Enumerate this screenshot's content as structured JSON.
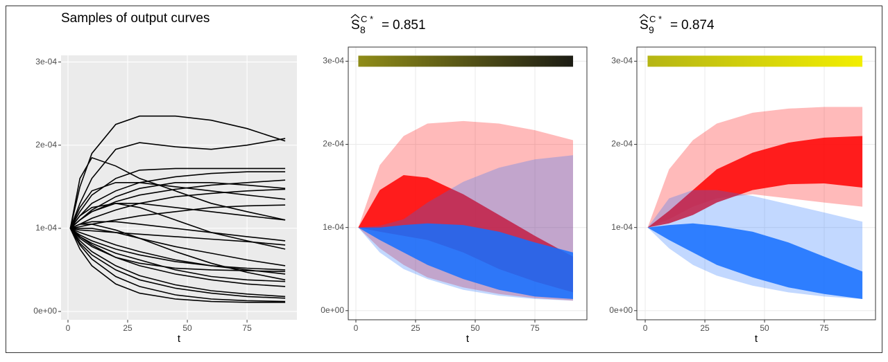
{
  "chart_data": [
    {
      "type": "line",
      "title": "Samples of output curves",
      "x_label": "t",
      "color": "#000000",
      "background": "#ebebeb",
      "grid_color": "#ffffff",
      "xlim": [
        -2.9,
        95.9
      ],
      "ylim": [
        -1e-05,
        0.000308
      ],
      "xticks": [
        0,
        25,
        50,
        75
      ],
      "yticks": [
        {
          "value": 0,
          "label": "0e+00"
        },
        {
          "value": 0.0001,
          "label": "1e-04"
        },
        {
          "value": 0.0002,
          "label": "2e-04"
        },
        {
          "value": 0.0003,
          "label": "3e-04"
        }
      ],
      "x": [
        1,
        5,
        10,
        20,
        30,
        45,
        60,
        75,
        91
      ],
      "series": [
        {
          "values": [
            0.0001,
            0.00015,
            0.00019,
            0.000225,
            0.000235,
            0.000235,
            0.00023,
            0.00022,
            0.000205
          ]
        },
        {
          "values": [
            0.0001,
            0.00016,
            0.000185,
            0.000175,
            0.00016,
            0.000145,
            0.00013,
            0.00012,
            0.00011
          ]
        },
        {
          "values": [
            0.0001,
            0.00013,
            0.00016,
            0.000195,
            0.000203,
            0.000198,
            0.000195,
            0.0002,
            0.000208
          ]
        },
        {
          "values": [
            0.0001,
            0.00012,
            0.00014,
            0.00016,
            0.00017,
            0.000172,
            0.000172,
            0.000172,
            0.000172
          ]
        },
        {
          "values": [
            0.0001,
            0.000115,
            0.00013,
            0.000145,
            0.000155,
            0.000162,
            0.000166,
            0.000168,
            0.000168
          ]
        },
        {
          "values": [
            0.0001,
            0.000125,
            0.000145,
            0.000155,
            0.000155,
            0.00015,
            0.000145,
            0.00014,
            0.000135
          ]
        },
        {
          "values": [
            0.0001,
            0.00011,
            0.00012,
            0.000132,
            0.00014,
            0.000147,
            0.000152,
            0.000155,
            0.000158
          ]
        },
        {
          "values": [
            0.0001,
            0.000105,
            0.000112,
            0.000122,
            0.00013,
            0.000138,
            0.000142,
            0.000145,
            0.000147
          ]
        },
        {
          "values": [
            0.0001,
            0.00011,
            0.00012,
            0.00013,
            0.00013,
            0.000125,
            0.00012,
            0.000115,
            0.00011
          ]
        },
        {
          "values": [
            0.0001,
            0.000102,
            0.000105,
            0.00011,
            0.000115,
            0.00012,
            0.000125,
            0.000127,
            0.000128
          ]
        },
        {
          "values": [
            0.0001,
            0.000115,
            0.000125,
            0.00013,
            0.000125,
            0.00011,
            9.5e-05,
            8.5e-05,
            7.5e-05
          ]
        },
        {
          "values": [
            0.0001,
            0.000105,
            0.000108,
            0.000108,
            0.000105,
            0.0001,
            9.5e-05,
            9e-05,
            8.5e-05
          ]
        },
        {
          "values": [
            0.0001,
            9.8e-05,
            9.7e-05,
            9.5e-05,
            9.3e-05,
            9e-05,
            8.7e-05,
            8.4e-05,
            8e-05
          ]
        },
        {
          "values": [
            0.0001,
            0.0001,
            0.0001,
            9.5e-05,
            8.8e-05,
            7.8e-05,
            7e-05,
            6.2e-05,
            5.5e-05
          ]
        },
        {
          "values": [
            0.0001,
            9.5e-05,
            9e-05,
            8e-05,
            7.2e-05,
            6.2e-05,
            5.5e-05,
            5e-05,
            4.5e-05
          ]
        },
        {
          "values": [
            0.0001,
            9e-05,
            8e-05,
            6.5e-05,
            5.5e-05,
            4.5e-05,
            3.8e-05,
            3.3e-05,
            3e-05
          ]
        },
        {
          "values": [
            0.0001,
            8.5e-05,
            7.2e-05,
            5.5e-05,
            4.3e-05,
            3.2e-05,
            2.5e-05,
            2.1e-05,
            1.8e-05
          ]
        },
        {
          "values": [
            0.0001,
            8e-05,
            6.3e-05,
            4.2e-05,
            3e-05,
            2e-05,
            1.5e-05,
            1.3e-05,
            1.2e-05
          ]
        },
        {
          "values": [
            0.0001,
            7.5e-05,
            5.5e-05,
            3.3e-05,
            2.2e-05,
            1.5e-05,
            1.2e-05,
            1.1e-05,
            1.1e-05
          ]
        },
        {
          "values": [
            0.0001,
            8.8e-05,
            7.8e-05,
            6.5e-05,
            5.8e-05,
            5.2e-05,
            5e-05,
            4.9e-05,
            4.8e-05
          ]
        },
        {
          "values": [
            0.0001,
            9.2e-05,
            8.5e-05,
            7.5e-05,
            6.8e-05,
            6e-05,
            5.5e-05,
            5.2e-05,
            5e-05
          ]
        },
        {
          "values": [
            0.0001,
            0.000105,
            0.000105,
            9.8e-05,
            8.8e-05,
            7.2e-05,
            5.8e-05,
            4.7e-05,
            3.8e-05
          ]
        },
        {
          "values": [
            0.0001,
            8.2e-05,
            6.8e-05,
            5e-05,
            3.8e-05,
            2.8e-05,
            2.2e-05,
            1.8e-05,
            1.6e-05
          ]
        },
        {
          "values": [
            0.0001,
            9e-05,
            8.2e-05,
            7e-05,
            6.2e-05,
            5e-05,
            4.2e-05,
            3.8e-05,
            3.6e-05
          ]
        },
        {
          "values": [
            0.0001,
            0.00011,
            0.000122,
            0.000138,
            0.000148,
            0.000155,
            0.000155,
            0.000152,
            0.000148
          ]
        }
      ]
    },
    {
      "type": "area",
      "title": {
        "symbol": "S",
        "subscript": "8",
        "superscript": "C *",
        "relation": "=",
        "value": 0.851
      },
      "x_label": "t",
      "background": "#ffffff",
      "grid_color": "#ebebeb",
      "colorbar": [
        "#8f8c18",
        "#1c1c14"
      ],
      "xlim": [
        -3.2,
        96.8
      ],
      "ylim": [
        -1.1e-05,
        0.000317
      ],
      "xticks": [
        0,
        25,
        50,
        75
      ],
      "yticks": [
        {
          "value": 0,
          "label": "0e+00"
        },
        {
          "value": 0.0001,
          "label": "1e-04"
        },
        {
          "value": 0.0002,
          "label": "2e-04"
        },
        {
          "value": 0.0003,
          "label": "3e-04"
        }
      ],
      "x": [
        1,
        10,
        20,
        30,
        45,
        60,
        75,
        91
      ],
      "series": [
        {
          "color": "rgba(255,0,0,0.27)",
          "lower": [
            0.0001,
            7.5e-05,
            5.5e-05,
            4e-05,
            2.8e-05,
            2e-05,
            1.5e-05,
            1.2e-05
          ],
          "upper": [
            0.0001,
            0.000175,
            0.00021,
            0.000225,
            0.000228,
            0.000225,
            0.000217,
            0.000205
          ]
        },
        {
          "color": "rgba(255,0,0,0.85)",
          "lower": [
            0.0001,
            9.5e-05,
            9e-05,
            8.5e-05,
            7e-05,
            5e-05,
            3.5e-05,
            2.2e-05
          ],
          "upper": [
            0.0001,
            0.000145,
            0.000163,
            0.00016,
            0.00014,
            0.000115,
            9e-05,
            6.5e-05
          ]
        },
        {
          "color": "rgba(30,110,255,0.27)",
          "lower": [
            0.0001,
            7e-05,
            5e-05,
            3.8e-05,
            2.5e-05,
            1.8e-05,
            1.4e-05,
            1.2e-05
          ],
          "upper": [
            0.0001,
            0.000102,
            0.00011,
            0.00013,
            0.000155,
            0.000172,
            0.000182,
            0.000187
          ]
        },
        {
          "color": "rgba(20,110,255,0.85)",
          "lower": [
            0.0001,
            8.5e-05,
            7e-05,
            5.5e-05,
            3.8e-05,
            2.5e-05,
            1.7e-05,
            1.4e-05
          ],
          "upper": [
            0.0001,
            0.0001,
            0.000103,
            0.000105,
            0.000103,
            9.5e-05,
            8.2e-05,
            7e-05
          ]
        }
      ]
    },
    {
      "type": "area",
      "title": {
        "symbol": "S",
        "subscript": "9",
        "superscript": "C *",
        "relation": "=",
        "value": 0.874
      },
      "x_label": "t",
      "background": "#ffffff",
      "grid_color": "#ebebeb",
      "colorbar": [
        "#b5b514",
        "#f2ee00"
      ],
      "xlim": [
        -3.5,
        96.5
      ],
      "ylim": [
        -1.1e-05,
        0.000317
      ],
      "xticks": [
        0,
        25,
        50,
        75
      ],
      "yticks": [
        {
          "value": 0,
          "label": "0e+00"
        },
        {
          "value": 0.0001,
          "label": "1e-04"
        },
        {
          "value": 0.0002,
          "label": "2e-04"
        },
        {
          "value": 0.0003,
          "label": "3e-04"
        }
      ],
      "x": [
        1,
        10,
        20,
        30,
        45,
        60,
        75,
        91
      ],
      "series": [
        {
          "color": "rgba(255,0,0,0.27)",
          "lower": [
            0.0001,
            0.00011,
            0.000125,
            0.000135,
            0.00014,
            0.000135,
            0.00013,
            0.000125
          ],
          "upper": [
            0.0001,
            0.00017,
            0.000205,
            0.000225,
            0.000238,
            0.000243,
            0.000245,
            0.000245
          ]
        },
        {
          "color": "rgba(255,0,0,0.85)",
          "lower": [
            0.0001,
            0.000105,
            0.000115,
            0.00013,
            0.000145,
            0.000152,
            0.000153,
            0.000148
          ],
          "upper": [
            0.0001,
            0.00012,
            0.000145,
            0.00017,
            0.00019,
            0.000202,
            0.000208,
            0.00021
          ]
        },
        {
          "color": "rgba(30,110,255,0.27)",
          "lower": [
            0.0001,
            7.5e-05,
            5.5e-05,
            4.2e-05,
            3e-05,
            2.2e-05,
            1.7e-05,
            1.4e-05
          ],
          "upper": [
            0.0001,
            0.000135,
            0.000145,
            0.000145,
            0.000138,
            0.000128,
            0.000118,
            0.000107
          ]
        },
        {
          "color": "rgba(20,110,255,0.85)",
          "lower": [
            0.0001,
            8.5e-05,
            7e-05,
            5.5e-05,
            4e-05,
            2.8e-05,
            2e-05,
            1.4e-05
          ],
          "upper": [
            0.0001,
            0.000103,
            0.000105,
            0.000102,
            9.5e-05,
            8.2e-05,
            6.5e-05,
            4.7e-05
          ]
        }
      ]
    }
  ]
}
